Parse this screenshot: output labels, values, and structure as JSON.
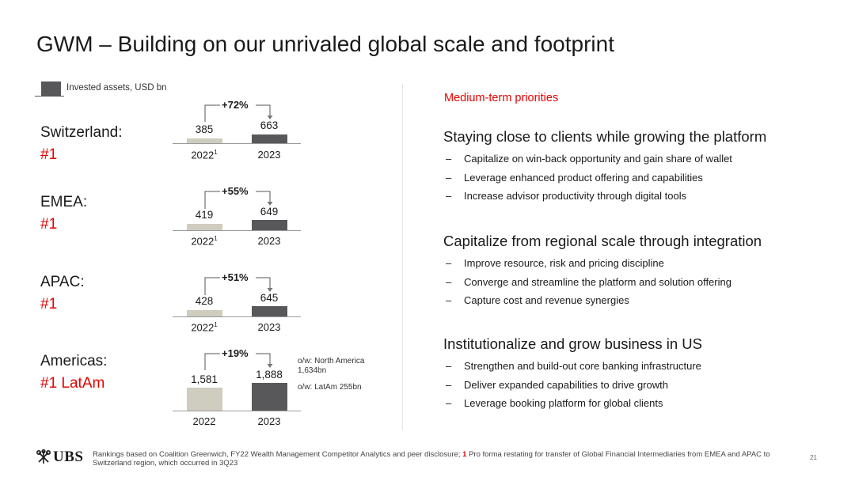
{
  "title": "GWM – Building on our unrivaled global scale and footprint",
  "legend": {
    "label": "Invested assets, USD bn"
  },
  "regions": [
    {
      "name": "Switzerland:",
      "rank": "#1",
      "growth": "+72%",
      "prev_value": "385",
      "curr_value": "663",
      "prev_year": "2022",
      "prev_year_sup": "1",
      "curr_year": "2023"
    },
    {
      "name": "EMEA:",
      "rank": "#1",
      "growth": "+55%",
      "prev_value": "419",
      "curr_value": "649",
      "prev_year": "2022",
      "prev_year_sup": "1",
      "curr_year": "2023"
    },
    {
      "name": "APAC:",
      "rank": "#1",
      "growth": "+51%",
      "prev_value": "428",
      "curr_value": "645",
      "prev_year": "2022",
      "prev_year_sup": "1",
      "curr_year": "2023"
    },
    {
      "name": "Americas:",
      "rank": "#1 LatAm",
      "growth": "+19%",
      "prev_value": "1,581",
      "curr_value": "1,888",
      "prev_year": "2022",
      "prev_year_sup": "",
      "curr_year": "2023"
    }
  ],
  "americas_notes": {
    "north_america_1": "o/w: North America",
    "north_america_2": "1,634bn",
    "latam": "o/w: LatAm 255bn"
  },
  "priorities": {
    "label": "Medium-term priorities",
    "sections": [
      {
        "title": "Staying close to clients while growing the platform",
        "bullets": [
          "Capitalize on win-back opportunity and gain share of wallet",
          "Leverage enhanced product offering and capabilities",
          "Increase advisor productivity through digital tools"
        ]
      },
      {
        "title": "Capitalize from regional scale through integration",
        "bullets": [
          "Improve resource, risk and pricing discipline",
          "Converge and streamline the platform and solution offering",
          "Capture cost and revenue synergies"
        ]
      },
      {
        "title": "Institutionalize and grow business in US",
        "bullets": [
          "Strengthen and build-out core banking infrastructure",
          "Deliver expanded capabilities to drive growth",
          "Leverage booking platform for global clients"
        ]
      }
    ]
  },
  "footer": {
    "logo_text": "UBS",
    "footnote_part1": "Rankings based on Coalition Greenwich, FY22 Wealth Management Competitor Analytics and peer disclosure; ",
    "footnote_marker": "1",
    "footnote_part2": " Pro forma restating for transfer of Global Financial Intermediaries from EMEA and APAC to Switzerland region, which occurred in 3Q23",
    "page_number": "21"
  },
  "colors": {
    "accent_red": "#e60000",
    "bar_2022": "#cfccc0",
    "bar_2023": "#58585a"
  },
  "dash": "–"
}
